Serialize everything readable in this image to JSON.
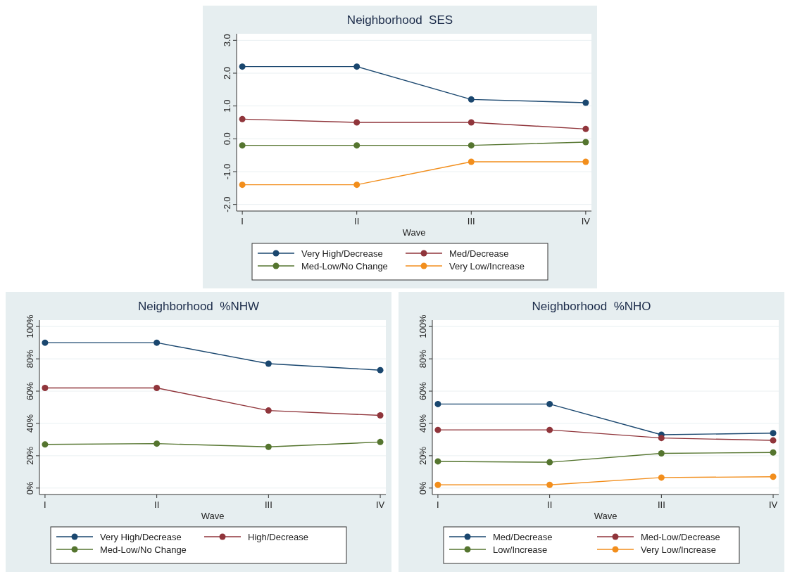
{
  "chart_data": [
    {
      "type": "line",
      "title": "Neighborhood  SES",
      "xlabel": "Wave",
      "categories": [
        "I",
        "II",
        "III",
        "IV"
      ],
      "ylim": [
        -2.2,
        3.2
      ],
      "yticks": [
        {
          "value": -2,
          "label": "-2.0"
        },
        {
          "value": -1,
          "label": "-1.0"
        },
        {
          "value": 0,
          "label": "0.0"
        },
        {
          "value": 1,
          "label": "1.0"
        },
        {
          "value": 2,
          "label": "2.0"
        },
        {
          "value": 3,
          "label": "3.0"
        }
      ],
      "grid": "y",
      "legend": "bottom",
      "marker": "circle",
      "series": [
        {
          "name": "Very High/Decrease",
          "color": "#1a476f",
          "values": [
            2.2,
            2.2,
            1.2,
            1.1
          ]
        },
        {
          "name": "Med/Decrease",
          "color": "#90353b",
          "values": [
            0.6,
            0.5,
            0.5,
            0.3
          ]
        },
        {
          "name": "Med-Low/No Change",
          "color": "#55752f",
          "values": [
            -0.2,
            -0.2,
            -0.2,
            -0.1
          ]
        },
        {
          "name": "Very Low/Increase",
          "color": "#f28e1c",
          "values": [
            -1.4,
            -1.4,
            -0.7,
            -0.7
          ]
        }
      ]
    },
    {
      "type": "line",
      "title": "Neighborhood  %NHW",
      "xlabel": "Wave",
      "categories": [
        "I",
        "II",
        "III",
        "IV"
      ],
      "ylim": [
        -4,
        104
      ],
      "yticks": [
        {
          "value": 0,
          "label": "0%"
        },
        {
          "value": 20,
          "label": "20%"
        },
        {
          "value": 40,
          "label": "40%"
        },
        {
          "value": 60,
          "label": "60%"
        },
        {
          "value": 80,
          "label": "80%"
        },
        {
          "value": 100,
          "label": "100%"
        }
      ],
      "grid": "y",
      "legend": "bottom",
      "marker": "circle",
      "series": [
        {
          "name": "Very High/Decrease",
          "color": "#1a476f",
          "values": [
            90,
            90,
            77,
            73
          ]
        },
        {
          "name": "High/Decrease",
          "color": "#90353b",
          "values": [
            62,
            62,
            48,
            45
          ]
        },
        {
          "name": "Med-Low/No Change",
          "color": "#55752f",
          "values": [
            27,
            27.5,
            25.5,
            28.5
          ]
        }
      ]
    },
    {
      "type": "line",
      "title": "Neighborhood  %NHO",
      "xlabel": "Wave",
      "categories": [
        "I",
        "II",
        "III",
        "IV"
      ],
      "ylim": [
        -4,
        104
      ],
      "yticks": [
        {
          "value": 0,
          "label": "0%"
        },
        {
          "value": 20,
          "label": "20%"
        },
        {
          "value": 40,
          "label": "40%"
        },
        {
          "value": 60,
          "label": "60%"
        },
        {
          "value": 80,
          "label": "80%"
        },
        {
          "value": 100,
          "label": "100%"
        }
      ],
      "grid": "y",
      "legend": "bottom",
      "marker": "circle",
      "series": [
        {
          "name": "Med/Decrease",
          "color": "#1a476f",
          "values": [
            52,
            52,
            33,
            34
          ]
        },
        {
          "name": "Med-Low/Decrease",
          "color": "#90353b",
          "values": [
            36,
            36,
            31,
            29.5
          ]
        },
        {
          "name": "Low/Increase",
          "color": "#55752f",
          "values": [
            16.5,
            16,
            21.5,
            22
          ]
        },
        {
          "name": "Very Low/Increase",
          "color": "#f28e1c",
          "values": [
            2,
            2,
            6.5,
            7
          ]
        }
      ]
    }
  ]
}
